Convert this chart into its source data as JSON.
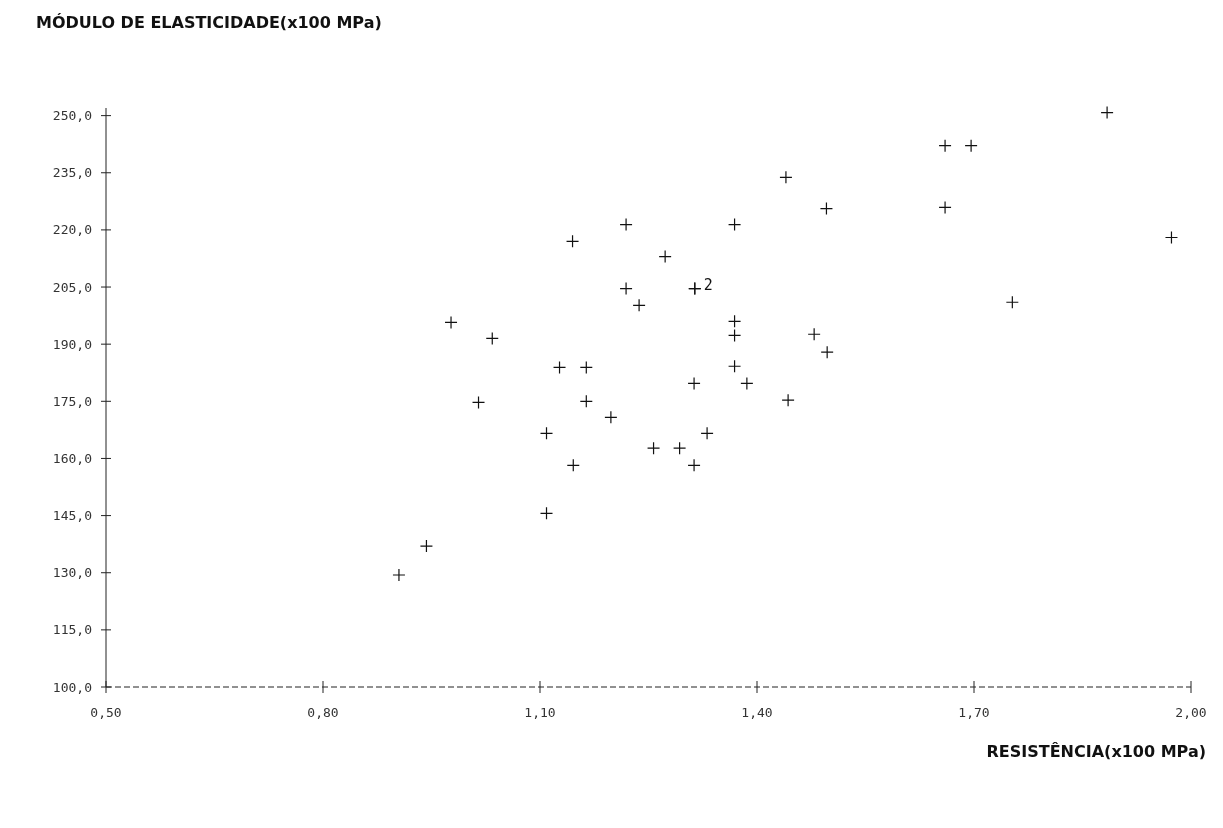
{
  "chart_data": {
    "type": "scatter",
    "xlabel": "RESISTÊNCIA(x100 MPa)",
    "ylabel": "MÓDULO DE ELASTICIDADE(x100 MPa)",
    "marker": "cross",
    "x": [
      0.905,
      0.943,
      0.977,
      1.034,
      1.015,
      1.109,
      1.109,
      1.127,
      1.164,
      1.164,
      1.145,
      1.146,
      1.198,
      1.219,
      1.219,
      1.237,
      1.257,
      1.273,
      1.293,
      1.313,
      1.313,
      1.331,
      1.369,
      1.369,
      1.369,
      1.369,
      1.386,
      1.443,
      1.44,
      1.479,
      1.497,
      1.496,
      1.66,
      1.696,
      1.66,
      1.753,
      1.884,
      1.973,
      1.314,
      1.314
    ],
    "series": [
      {
        "color": "#111111",
        "values": [
          129.4,
          137.0,
          195.7,
          191.5,
          174.7,
          166.6,
          145.6,
          183.9,
          183.9,
          175.0,
          217.0,
          158.2,
          170.8,
          221.4,
          204.6,
          200.2,
          162.7,
          213.0,
          162.7,
          158.2,
          179.7,
          166.6,
          221.4,
          196.0,
          192.3,
          184.2,
          179.7,
          175.3,
          233.8,
          192.6,
          187.9,
          225.6,
          242.1,
          242.1,
          225.9,
          201.0,
          250.8,
          218.0,
          204.6,
          204.6
        ]
      }
    ],
    "annotations": [
      {
        "text": "2",
        "x": 1.314,
        "y": 204.6
      }
    ],
    "xlim": [
      0.5,
      2.0
    ],
    "ylim": [
      100,
      252
    ],
    "xticks": [
      {
        "value": 0.5,
        "label": "0,50"
      },
      {
        "value": 0.8,
        "label": "0,80"
      },
      {
        "value": 1.1,
        "label": "1,10"
      },
      {
        "value": 1.4,
        "label": "1,40"
      },
      {
        "value": 1.7,
        "label": "1,70"
      },
      {
        "value": 2.0,
        "label": "2,00"
      }
    ],
    "yticks": [
      {
        "value": 100,
        "label": "100,0"
      },
      {
        "value": 115,
        "label": "115,0"
      },
      {
        "value": 130,
        "label": "130,0"
      },
      {
        "value": 145,
        "label": "145,0"
      },
      {
        "value": 160,
        "label": "160,0"
      },
      {
        "value": 175,
        "label": "175,0"
      },
      {
        "value": 190,
        "label": "190,0"
      },
      {
        "value": 205,
        "label": "205,0"
      },
      {
        "value": 220,
        "label": "220,0"
      },
      {
        "value": 235,
        "label": "235,0"
      },
      {
        "value": 250,
        "label": "250,0"
      }
    ]
  }
}
